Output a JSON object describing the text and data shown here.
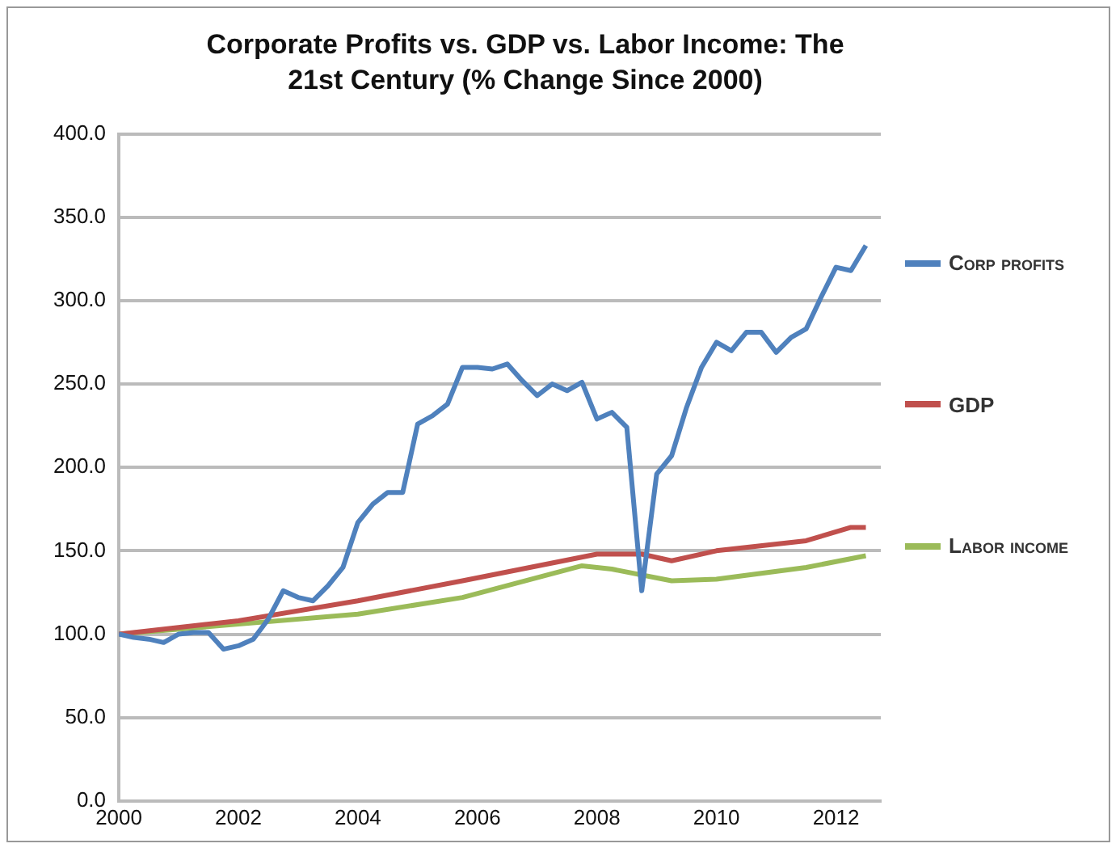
{
  "chart_data": {
    "type": "line",
    "title": "Corporate Profits vs. GDP vs. Labor Income: The 21st Century (% Change Since 2000)",
    "xlim": [
      2000,
      2012.75
    ],
    "xticks": [
      2000,
      2002,
      2004,
      2006,
      2008,
      2010,
      2012
    ],
    "ylim": [
      0,
      400
    ],
    "yticks": [
      {
        "value": 0,
        "label": "0.0"
      },
      {
        "value": 50,
        "label": "50.0"
      },
      {
        "value": 100,
        "label": "100.0"
      },
      {
        "value": 150,
        "label": "150.0"
      },
      {
        "value": 200,
        "label": "200.0"
      },
      {
        "value": 250,
        "label": "250.0"
      },
      {
        "value": 300,
        "label": "300.0"
      },
      {
        "value": 350,
        "label": "350.0"
      },
      {
        "value": 400,
        "label": "400.0"
      }
    ],
    "grid": "y",
    "legend": "right",
    "marker": "none",
    "line_style": "solid",
    "series": [
      {
        "name": "Corp profits",
        "color": "#4f81bd",
        "x": [
          2000,
          2000.25,
          2000.5,
          2000.75,
          2001,
          2001.25,
          2001.5,
          2001.75,
          2002,
          2002.25,
          2002.5,
          2002.75,
          2003,
          2003.25,
          2003.5,
          2003.75,
          2004,
          2004.25,
          2004.5,
          2004.75,
          2005,
          2005.25,
          2005.5,
          2005.75,
          2006,
          2006.25,
          2006.5,
          2006.75,
          2007,
          2007.25,
          2007.5,
          2007.75,
          2008,
          2008.25,
          2008.5,
          2008.75,
          2009,
          2009.25,
          2009.5,
          2009.75,
          2010,
          2010.25,
          2010.5,
          2010.75,
          2011,
          2011.25,
          2011.5,
          2011.75,
          2012,
          2012.25,
          2012.5
        ],
        "values": [
          100,
          98,
          97,
          95,
          100,
          101,
          101,
          91,
          93,
          97,
          109,
          126,
          122,
          120,
          129,
          140,
          167,
          178,
          185,
          185,
          226,
          231,
          238,
          260,
          260,
          259,
          262,
          252,
          243,
          250,
          246,
          251,
          229,
          233,
          224,
          126,
          196,
          207,
          236,
          260,
          275,
          270,
          281,
          281,
          269,
          278,
          283,
          302,
          320,
          318,
          333
        ]
      },
      {
        "name": "GDP",
        "color": "#c0504d",
        "x": [
          2000,
          2002,
          2004,
          2005.75,
          2008,
          2008.75,
          2009.25,
          2010,
          2011.5,
          2012.25,
          2012.5
        ],
        "values": [
          100,
          108,
          120,
          132,
          148,
          148,
          144,
          150,
          156,
          164,
          164
        ]
      },
      {
        "name": "Labor income",
        "color": "#9bbb59",
        "x": [
          2000,
          2002,
          2004,
          2005.75,
          2007.75,
          2008.25,
          2009.25,
          2010,
          2011.5,
          2012.5
        ],
        "values": [
          100,
          106,
          112,
          122,
          141,
          139,
          132,
          133,
          140,
          147
        ]
      }
    ]
  }
}
